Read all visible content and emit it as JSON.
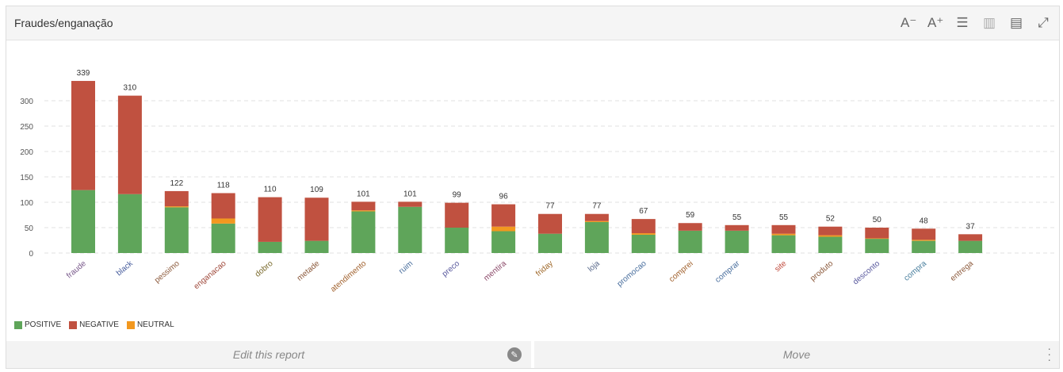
{
  "header": {
    "title": "Fraudes/enganação"
  },
  "toolbar": {
    "icons": [
      "font-decrease-icon",
      "font-increase-icon",
      "list-icon",
      "bar-chart-icon",
      "comment-icon",
      "expand-icon"
    ],
    "labels": {
      "font_decrease": "A⁻",
      "font_increase": "A⁺",
      "list": "☰",
      "chart": "▥",
      "comment": "▤",
      "expand": "⤢"
    }
  },
  "footer": {
    "edit_label": "Edit this report",
    "move_label": "Move"
  },
  "colors": {
    "positive": "#5fa55a",
    "negative": "#c05140",
    "neutral": "#f2981f"
  },
  "chart_data": {
    "type": "bar",
    "stacked": true,
    "title": "",
    "xlabel": "",
    "ylabel": "",
    "ylim": [
      0,
      340
    ],
    "yticks": [
      0,
      50,
      100,
      150,
      200,
      250,
      300
    ],
    "grid": true,
    "legend_position": "bottom-left",
    "legend": [
      "POSITIVE",
      "NEGATIVE",
      "NEUTRAL"
    ],
    "categories": [
      "fraude",
      "black",
      "pessimo",
      "enganacao",
      "dobro",
      "metade",
      "atendimento",
      "ruim",
      "preco",
      "mentira",
      "friday",
      "loja",
      "promocao",
      "comprei",
      "comprar",
      "site",
      "produto",
      "desconto",
      "compra",
      "entrega"
    ],
    "label_colors": [
      "#7a5a8c",
      "#4a5f9e",
      "#8c5a3c",
      "#a04a3c",
      "#7a6a2c",
      "#8c5a3c",
      "#a0602c",
      "#4a6f9e",
      "#5a5a9e",
      "#8c4a6a",
      "#a06a2c",
      "#5a6a8c",
      "#4a6f9e",
      "#a0602c",
      "#4a6f9e",
      "#c04a3c",
      "#8c5a3c",
      "#5a5a9e",
      "#4a7f9e",
      "#8c5a3c"
    ],
    "totals": [
      339,
      310,
      122,
      118,
      110,
      109,
      101,
      101,
      99,
      96,
      77,
      77,
      67,
      59,
      55,
      55,
      52,
      50,
      48,
      37
    ],
    "series": [
      {
        "name": "POSITIVE",
        "values": [
          124,
          116,
          90,
          58,
          22,
          24,
          82,
          91,
          50,
          43,
          38,
          61,
          36,
          44,
          44,
          35,
          32,
          28,
          24,
          24
        ]
      },
      {
        "name": "NEUTRAL",
        "values": [
          0,
          0,
          2,
          10,
          0,
          0,
          2,
          0,
          0,
          9,
          0,
          2,
          3,
          0,
          0,
          3,
          3,
          1,
          2,
          0
        ]
      },
      {
        "name": "NEGATIVE",
        "values": [
          215,
          194,
          30,
          50,
          88,
          85,
          17,
          10,
          49,
          44,
          39,
          14,
          28,
          15,
          11,
          17,
          17,
          21,
          22,
          13
        ]
      }
    ]
  }
}
